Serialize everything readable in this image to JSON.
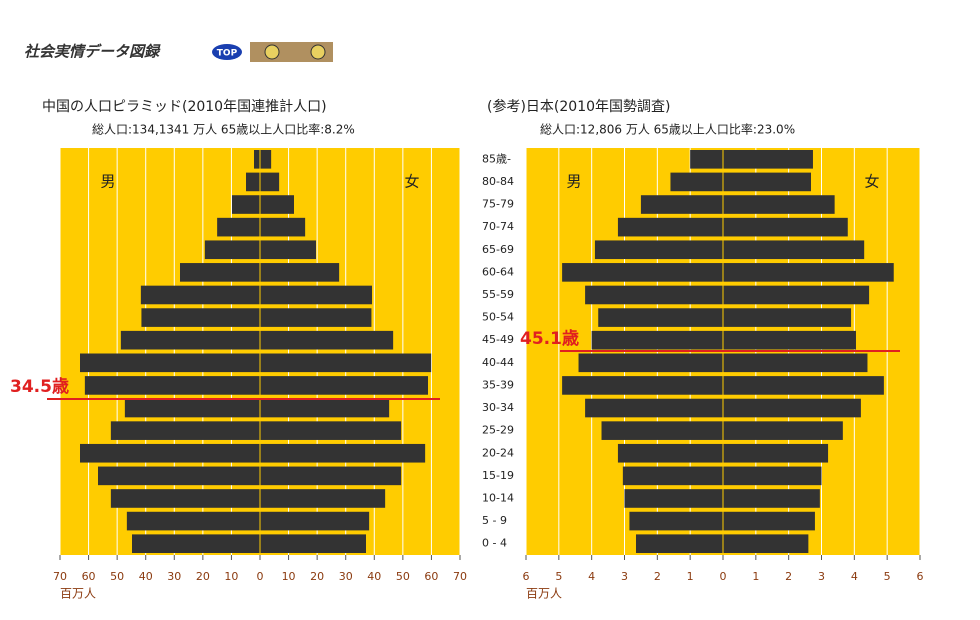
{
  "header": {
    "logo": "社会実情データ図録",
    "badge": "TOP"
  },
  "chart_data": [
    {
      "type": "pyramid",
      "title": "中国の人口ピラミッド(2010年国連推計人口)",
      "subtitle": "総人口:134,1341 万人  65歳以上人口比率:8.2%",
      "x_label": "百万人",
      "series": [
        {
          "name": "男",
          "color": "#333333",
          "values": [
            2.1,
            4.9,
            9.8,
            15,
            19.3,
            28,
            41.7,
            41.5,
            48.7,
            63,
            61.3,
            47.3,
            52.2,
            63,
            56.7,
            52.2,
            46.6,
            44.8
          ]
        },
        {
          "name": "女",
          "color": "#333333",
          "values": [
            3.9,
            6.7,
            11.9,
            15.8,
            19.6,
            27.7,
            39.2,
            39,
            46.6,
            59.9,
            58.8,
            45.2,
            49.4,
            57.8,
            49.4,
            43.8,
            38.2,
            37.1
          ]
        }
      ],
      "xlim": [
        -70,
        70
      ],
      "xticks": [
        {
          "value": -70,
          "label": "70"
        },
        {
          "value": -60,
          "label": "60"
        },
        {
          "value": -50,
          "label": "50"
        },
        {
          "value": -40,
          "label": "40"
        },
        {
          "value": -30,
          "label": "30"
        },
        {
          "value": -20,
          "label": "20"
        },
        {
          "value": -10,
          "label": "10"
        },
        0,
        10,
        20,
        30,
        40,
        50,
        60,
        70
      ],
      "annotation": {
        "value": 34.5,
        "label": "34.5歳"
      },
      "background": "#ffcc00",
      "grid": true
    },
    {
      "type": "pyramid",
      "title": "(参考)日本(2010年国勢調査)",
      "subtitle": "総人口:12,806 万人  65歳以上人口比率:23.0%",
      "x_label": "百万人",
      "categories": [
        "85歳-",
        "80-84",
        "75-79",
        "70-74",
        "65-69",
        "60-64",
        "55-59",
        "50-54",
        "45-49",
        "40-44",
        "35-39",
        "30-34",
        "25-29",
        "20-24",
        "15-19",
        "10-14",
        "5 - 9",
        "0 - 4"
      ],
      "series": [
        {
          "name": "男",
          "color": "#333333",
          "values": [
            1.0,
            1.6,
            2.5,
            3.2,
            3.9,
            4.9,
            4.2,
            3.8,
            4.0,
            4.4,
            4.9,
            4.2,
            3.7,
            3.2,
            3.05,
            3.0,
            2.85,
            2.65
          ]
        },
        {
          "name": "女",
          "color": "#333333",
          "values": [
            2.74,
            2.68,
            3.4,
            3.8,
            4.3,
            5.2,
            4.45,
            3.9,
            4.05,
            4.4,
            4.9,
            4.2,
            3.65,
            3.2,
            3.0,
            2.95,
            2.8,
            2.6
          ]
        }
      ],
      "xlim": [
        -6,
        6
      ],
      "xticks": [
        {
          "value": -6,
          "label": "6"
        },
        {
          "value": -5,
          "label": "5"
        },
        {
          "value": -4,
          "label": "4"
        },
        {
          "value": -3,
          "label": "3"
        },
        {
          "value": -2,
          "label": "2"
        },
        {
          "value": -1,
          "label": "1"
        },
        0,
        1,
        2,
        3,
        4,
        5,
        6
      ],
      "annotation": {
        "value": 45.1,
        "label": "45.1歳"
      },
      "background": "#ffcc00",
      "grid": true
    }
  ]
}
